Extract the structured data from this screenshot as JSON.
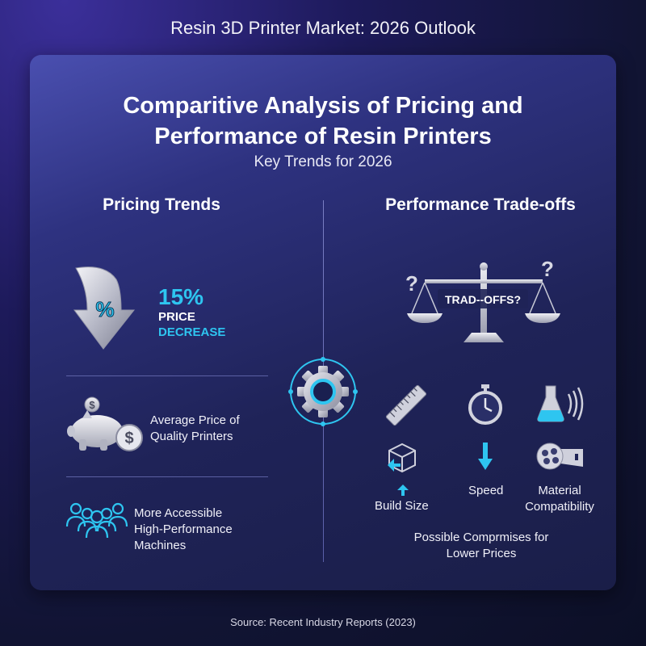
{
  "header": {
    "title": "Resin 3D Printer Market: 2026 Outlook"
  },
  "card": {
    "title_line1": "Comparitive Analysis of Pricing and",
    "title_line2": "Performance of Resin Printers",
    "subtitle": "Key Trends for 2026"
  },
  "left": {
    "heading": "Pricing Trends",
    "percent_glyph": "%",
    "stat_value": "15%",
    "stat_label1": "PRICE",
    "stat_label2": "DECREASE",
    "avg_line1": "Average Price of",
    "avg_line2": "Quality Printers",
    "acc_line1": "More Accessible",
    "acc_line2": "High-Performance",
    "acc_line3": "Machines",
    "dollar_glyph": "$"
  },
  "right": {
    "heading": "Performance Trade-offs",
    "scale_label": "TRAD--OFFS?",
    "question_mark": "?",
    "build_size": "Build Size",
    "speed": "Speed",
    "material_line1": "Material",
    "material_line2": "Compatibility",
    "compromise_line1": "Possible Comprmises for",
    "compromise_line2": "Lower Prices"
  },
  "footer": {
    "source": "Source: Recent Industry Reports (2023)"
  },
  "colors": {
    "accent": "#2ec5f0",
    "card_top": "#4a4fb0",
    "card_bottom": "#1a1e48"
  },
  "icons": [
    "down-arrow-percent-icon",
    "piggy-bank-icon",
    "dollar-coin-icon",
    "people-group-icon",
    "balance-scale-icon",
    "gear-icon",
    "ruler-icon",
    "stopwatch-icon",
    "flask-icon",
    "cube-icon",
    "up-arrow-icon",
    "down-arrow-icon",
    "film-reel-icon"
  ]
}
